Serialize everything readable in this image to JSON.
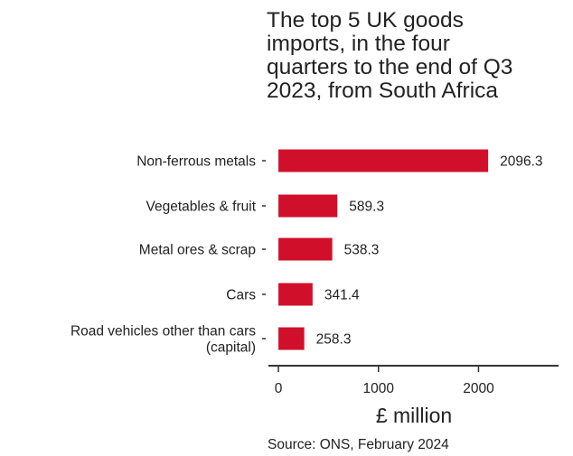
{
  "chart_data": {
    "type": "bar",
    "orientation": "horizontal",
    "title": "The top 5 UK goods imports, in the four quarters to the end of Q3 2023, from South Africa",
    "title_lines": [
      "The top 5 UK goods",
      "imports, in the four",
      "quarters to the end of Q3",
      "2023, from South Africa"
    ],
    "categories": [
      "Non-ferrous metals",
      "Vegetables & fruit",
      "Metal ores & scrap",
      "Cars",
      "Road vehicles other than cars (capital)"
    ],
    "category_lines": [
      [
        "Non-ferrous metals"
      ],
      [
        "Vegetables & fruit"
      ],
      [
        "Metal ores & scrap"
      ],
      [
        "Cars"
      ],
      [
        "Road vehicles other than cars",
        "(capital)"
      ]
    ],
    "values": [
      2096.3,
      589.3,
      538.3,
      341.4,
      258.3
    ],
    "value_labels": [
      "2096.3",
      "589.3",
      "538.3",
      "341.4",
      "258.3"
    ],
    "xlabel": "£ million",
    "ylabel": "",
    "xlim": [
      -100,
      2800
    ],
    "xticks": [
      0,
      1000,
      2000
    ],
    "xtick_labels": [
      "0",
      "1000",
      "2000"
    ],
    "bar_color": "#d0102a",
    "grid": false,
    "legend": "none",
    "source": "Source: ONS, February 2024"
  }
}
